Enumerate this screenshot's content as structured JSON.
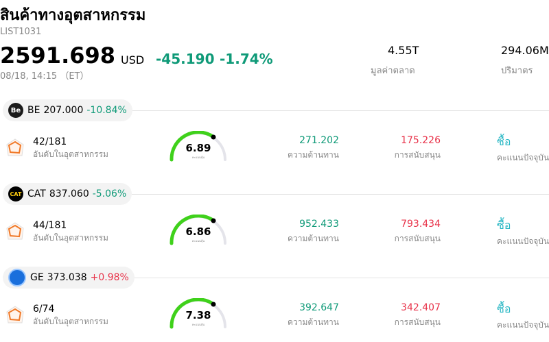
{
  "header": {
    "title": "สินค้าทางอุตสาหกรรม",
    "code": "LIST1031",
    "price": "2591.698",
    "currency": "USD",
    "change": "-45.190",
    "change_pct": "-1.74%",
    "datetime": "08/18, 14:15 （ET）",
    "market_cap": "4.55T",
    "market_cap_label": "มูลค่าตลาด",
    "volume": "294.06M",
    "volume_label": "ปริมาตร"
  },
  "stocks": [
    {
      "ticker": "BE",
      "logo_text": "Be",
      "price": "207.000",
      "change_pct": "-10.84%",
      "rank": "42/181",
      "rank_label": "อันดับในอุตสาหกรรม",
      "score": "6.89",
      "score_label": "คะแนนหุ้น",
      "resistance": "271.202",
      "resistance_label": "ความต้านทาน",
      "support": "175.226",
      "support_label": "การสนับสนุน",
      "rating": "ซื้อ",
      "rating_label": "คะแนนปัจจุบัน"
    },
    {
      "ticker": "CAT",
      "logo_text": "CAT",
      "price": "837.060",
      "change_pct": "-5.06%",
      "rank": "44/181",
      "rank_label": "อันดับในอุตสาหกรรม",
      "score": "6.86",
      "score_label": "คะแนนหุ้น",
      "resistance": "952.433",
      "resistance_label": "ความต้านทาน",
      "support": "793.434",
      "support_label": "การสนับสนุน",
      "rating": "ซื้อ",
      "rating_label": "คะแนนปัจจุบัน"
    },
    {
      "ticker": "GE",
      "price": "373.038",
      "change_pct": "+0.98%",
      "rank": "6/74",
      "rank_label": "อันดับในอุตสาหกรรม",
      "score": "7.38",
      "score_label": "คะแนนหุ้น",
      "resistance": "392.647",
      "resistance_label": "ความต้านทาน",
      "support": "342.407",
      "support_label": "การสนับสนุน",
      "rating": "ซื้อ",
      "rating_label": "คะแนนปัจจุบัน"
    }
  ]
}
